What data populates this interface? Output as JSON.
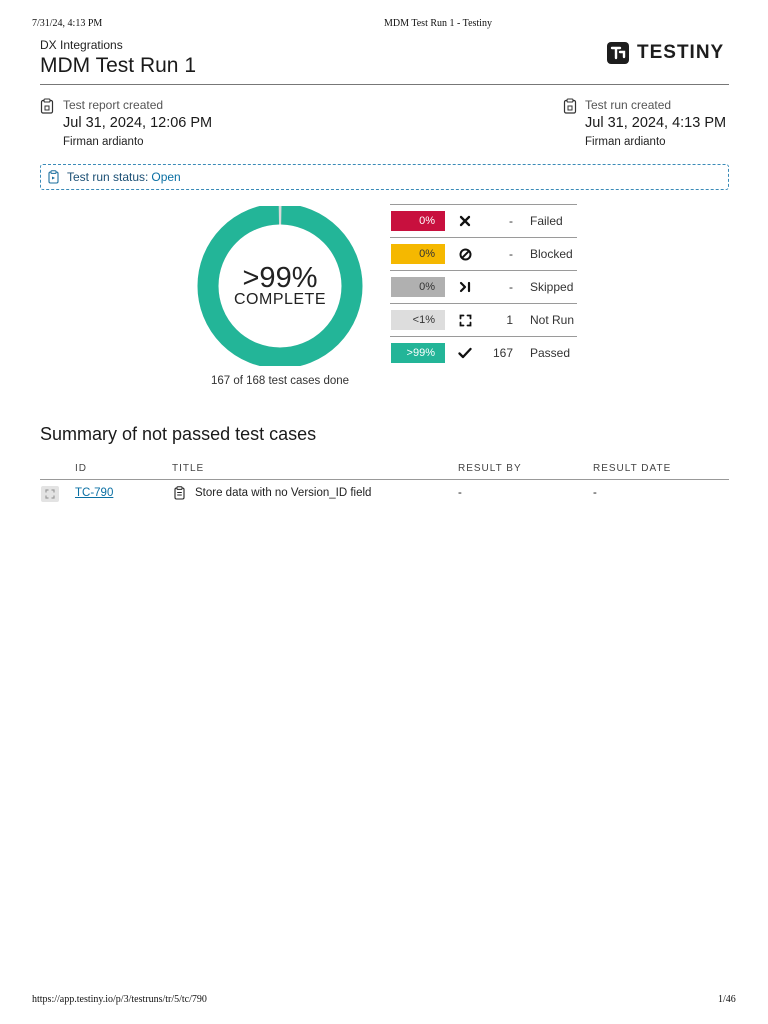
{
  "print_header": {
    "datetime": "7/31/24, 4:13 PM",
    "doc_title": "MDM Test Run 1 - Testiny"
  },
  "header": {
    "org": "DX Integrations",
    "title": "MDM Test Run 1",
    "logo_text": "TESTINY"
  },
  "report_meta": {
    "label": "Test report created",
    "date": "Jul 31, 2024, 12:06 PM",
    "user": "Firman ardianto"
  },
  "run_meta": {
    "label": "Test run created",
    "date": "Jul 31, 2024, 4:13 PM",
    "user": "Firman ardianto"
  },
  "status": {
    "label": "Test run status:",
    "value": "Open"
  },
  "progress": {
    "percent_text": ">99%",
    "complete_text": "COMPLETE",
    "done_text": "167 of 168 test cases done",
    "done": 167,
    "total": 168
  },
  "legend": [
    {
      "pct": "0%",
      "count": "-",
      "label": "Failed",
      "color": "#c8103e",
      "text_color": "#ffffff",
      "icon": "x-icon"
    },
    {
      "pct": "0%",
      "count": "-",
      "label": "Blocked",
      "color": "#f5b800",
      "text_color": "#333333",
      "icon": "blocked-icon"
    },
    {
      "pct": "0%",
      "count": "-",
      "label": "Skipped",
      "color": "#b0b0b0",
      "text_color": "#333333",
      "icon": "skip-icon"
    },
    {
      "pct": "<1%",
      "count": "1",
      "label": "Not Run",
      "color": "#dddddd",
      "text_color": "#333333",
      "icon": "not-run-icon"
    },
    {
      "pct": ">99%",
      "count": "167",
      "label": "Passed",
      "color": "#23b598",
      "text_color": "#ffffff",
      "icon": "check-icon"
    }
  ],
  "summary": {
    "title": "Summary of not passed test cases",
    "columns": [
      "ID",
      "TITLE",
      "RESULT BY",
      "RESULT DATE"
    ],
    "rows": [
      {
        "id": "TC-790",
        "title": "Store data with no Version_ID field",
        "result_by": "-",
        "result_date": "-"
      }
    ]
  },
  "print_footer": {
    "url": "https://app.testiny.io/p/3/testruns/tr/5/tc/790",
    "page": "1/46"
  },
  "colors": {
    "passed": "#23b598",
    "not_run": "#d9d9d9",
    "accent": "#0a6fa3"
  }
}
